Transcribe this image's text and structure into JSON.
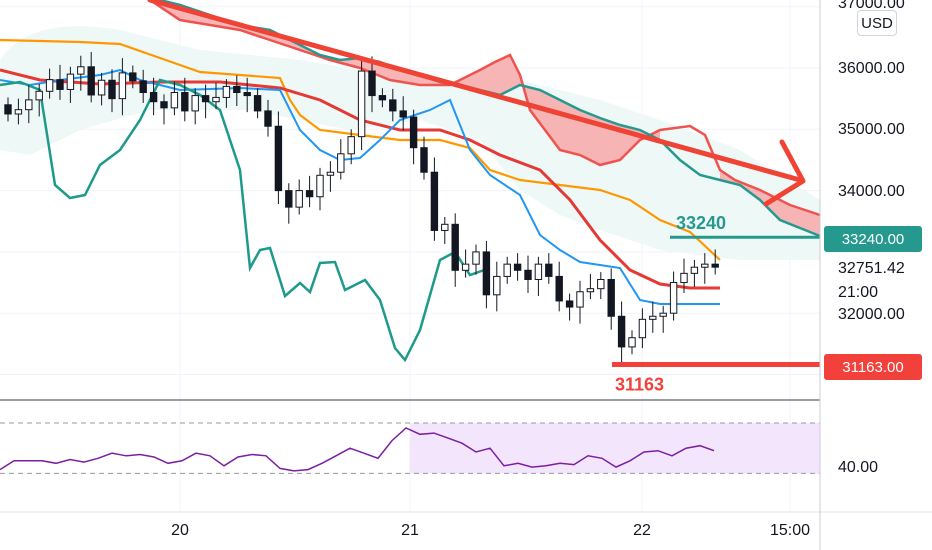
{
  "currency_button": "USD",
  "price_axis": {
    "ticks": [
      "37000.00",
      "36000.00",
      "35000.00",
      "34000.00",
      "32000.00",
      "40.00"
    ],
    "current_price": "32751.42",
    "countdown": "21:00"
  },
  "time_axis": {
    "ticks": [
      "20",
      "21",
      "22",
      "15:00"
    ]
  },
  "levels": {
    "resistance": {
      "label": "33240",
      "badge": "33240.00",
      "color": "#26998f"
    },
    "support": {
      "label": "31163",
      "badge": "31163.00",
      "color": "#f2413a"
    }
  },
  "colors": {
    "bg": "#ffffff",
    "grid": "#f0f3fa",
    "cloud_bear": "#f7a8a8",
    "cloud_bear_edge": "#ef5350",
    "cloud_bull_edge": "#26998f",
    "orange_line": "#ff9800",
    "red_ma": "#e53935",
    "blue_line": "#2196f3",
    "teal_line": "#1e9a8a",
    "rsi_line": "#7b1fa2",
    "rsi_fill": "#f3e5fc",
    "arrow": "#ef4335"
  },
  "chart_data": {
    "type": "candlestick",
    "title": "",
    "xlabel": "",
    "ylabel": "",
    "x_ticks": [
      "20",
      "21",
      "22",
      "15:00"
    ],
    "y_ticks": [
      37000,
      36000,
      35000,
      34000,
      32000
    ],
    "ylim": [
      30600,
      37100
    ],
    "rsi": {
      "ylim": [
        20,
        80
      ],
      "band": [
        30,
        70
      ],
      "values": [
        33,
        40,
        40,
        40,
        38,
        41,
        39,
        42,
        46,
        44,
        45,
        43,
        38,
        40,
        46,
        44,
        36,
        43,
        45,
        44,
        34,
        32,
        33,
        38,
        44,
        50,
        46,
        42,
        56,
        66,
        61,
        62,
        58,
        54,
        47,
        50,
        36,
        38,
        35,
        36,
        38,
        37,
        44,
        42,
        35,
        40,
        47,
        48,
        44,
        50,
        52,
        48
      ]
    },
    "candles_close": [
      35250,
      35320,
      35480,
      35620,
      35810,
      35650,
      35900,
      36020,
      35560,
      35800,
      35500,
      35920,
      35790,
      35600,
      35450,
      35350,
      35600,
      35300,
      35550,
      35450,
      35520,
      35700,
      35600,
      35550,
      35300,
      35050,
      34000,
      33730,
      34000,
      33900,
      34250,
      34300,
      34600,
      34880,
      35950,
      35550,
      35480,
      35300,
      35200,
      34700,
      34300,
      33350,
      33450,
      32700,
      32800,
      33000,
      32300,
      32600,
      32800,
      32700,
      32550,
      32800,
      32600,
      32200,
      32100,
      32350,
      32400,
      32550,
      31950,
      31450,
      31600,
      31900,
      31950,
      32000,
      32500,
      32650,
      32750,
      32800,
      32751
    ]
  }
}
